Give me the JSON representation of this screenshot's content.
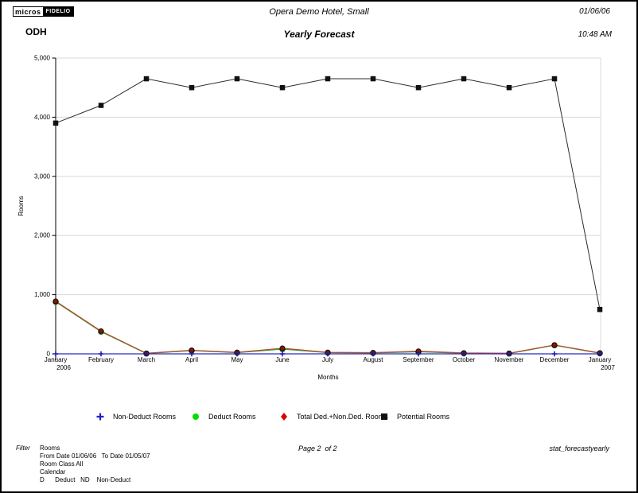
{
  "header": {
    "logo_micros": "micros",
    "logo_fidelio": "FIDELIO",
    "property_code": "ODH",
    "hotel_name": "Opera Demo Hotel, Small",
    "report_title": "Yearly Forecast",
    "report_date": "01/06/06",
    "report_time": "10:48 AM"
  },
  "chart_data": {
    "type": "line",
    "title": "Yearly Forecast",
    "xlabel": "Months",
    "ylabel": "Rooms",
    "ylim": [
      0,
      5000
    ],
    "ytick_step": 1000,
    "ytick_labels": [
      "0",
      "1,000",
      "2,000",
      "3,000",
      "4,000",
      "5,000"
    ],
    "grid": true,
    "legend_position": "bottom",
    "categories": [
      "January",
      "February",
      "March",
      "April",
      "May",
      "June",
      "July",
      "August",
      "September",
      "October",
      "November",
      "December",
      "January"
    ],
    "category_sublabels": {
      "0": "2006",
      "12": "2007"
    },
    "series": [
      {
        "name": "Non-Deduct Rooms",
        "marker": "plus",
        "line_color": "#2b2bc4",
        "marker_color": "#1a1aad",
        "values": [
          0,
          0,
          0,
          0,
          0,
          0,
          0,
          0,
          0,
          0,
          0,
          0,
          0
        ]
      },
      {
        "name": "Deduct Rooms",
        "marker": "circle",
        "line_color": "#2f9e2f",
        "marker_color": "#00c000",
        "values": [
          880,
          375,
          5,
          55,
          20,
          80,
          20,
          15,
          35,
          10,
          5,
          145,
          10
        ]
      },
      {
        "name": "Total Ded.+Non.Ded. Rooms",
        "marker": "circle",
        "line_color": "#b54a2c",
        "marker_color": "#8f1300",
        "values": [
          890,
          385,
          10,
          60,
          25,
          95,
          25,
          20,
          45,
          15,
          10,
          150,
          15
        ]
      },
      {
        "name": "Potential Rooms",
        "marker": "square",
        "line_color": "#2b2b2b",
        "marker_color": "#111111",
        "values": [
          3900,
          4200,
          4650,
          4500,
          4650,
          4500,
          4650,
          4650,
          4500,
          4650,
          4500,
          4650,
          750
        ]
      }
    ]
  },
  "legend": {
    "items": [
      {
        "label": "Non-Deduct Rooms",
        "marker": "plus",
        "color": "#2222cc"
      },
      {
        "label": "Deduct Rooms",
        "marker": "circle",
        "color": "#00dd00"
      },
      {
        "label": "Total Ded.+Non.Ded. Rooms",
        "marker": "diamond",
        "color": "#dd0000"
      },
      {
        "label": "Potential Rooms",
        "marker": "square",
        "color": "#111111"
      }
    ]
  },
  "footer": {
    "filter_label": "Filter",
    "filter_lines": [
      "Rooms",
      "From Date 01/06/06   To Date 01/05/07",
      "Room Class All",
      "Calendar",
      "D      Deduct   ND    Non-Deduct"
    ],
    "page_indicator": "Page 2  of 2",
    "report_file": "stat_forecastyearly"
  }
}
